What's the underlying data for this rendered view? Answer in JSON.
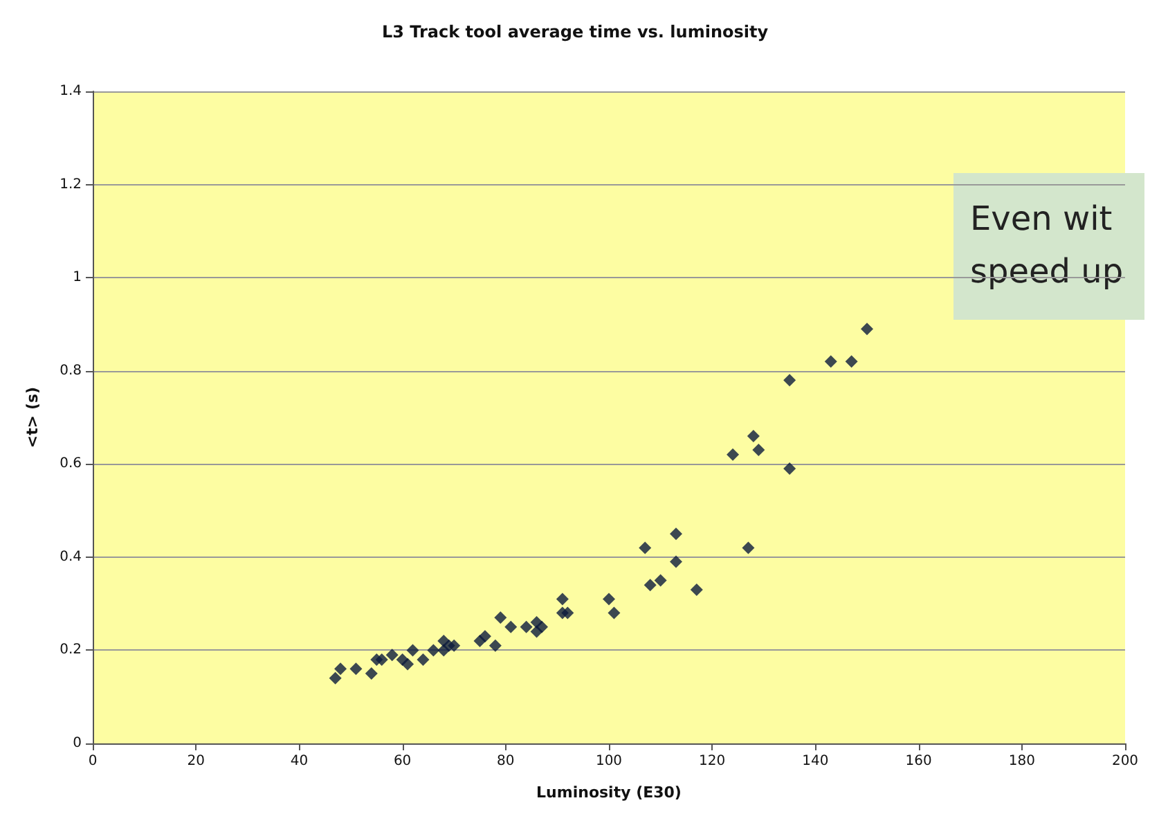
{
  "chart_data": {
    "type": "scatter",
    "title": "L3 Track tool average time vs. luminosity",
    "xlabel": "Luminosity (E30)",
    "ylabel": "<t> (s)",
    "annotations": [
      "Even wit\nspeed up"
    ],
    "x": [
      47,
      48,
      51,
      54,
      55,
      56,
      58,
      60,
      61,
      62,
      64,
      66,
      68,
      68,
      69,
      70,
      75,
      76,
      78,
      79,
      81,
      84,
      86,
      86,
      87,
      91,
      91,
      92,
      100,
      101,
      107,
      108,
      110,
      113,
      113,
      117,
      124,
      127,
      128,
      129,
      135,
      135,
      143,
      147,
      150
    ],
    "series": [
      {
        "color": "#0b1a3c",
        "values": [
          0.14,
          0.16,
          0.16,
          0.15,
          0.18,
          0.18,
          0.19,
          0.18,
          0.17,
          0.2,
          0.18,
          0.2,
          0.22,
          0.2,
          0.21,
          0.21,
          0.22,
          0.23,
          0.21,
          0.27,
          0.25,
          0.25,
          0.26,
          0.24,
          0.25,
          0.31,
          0.28,
          0.28,
          0.31,
          0.28,
          0.42,
          0.34,
          0.35,
          0.45,
          0.39,
          0.33,
          0.62,
          0.42,
          0.66,
          0.63,
          0.78,
          0.59,
          0.82,
          0.82,
          0.89
        ]
      }
    ],
    "xlim": [
      0,
      200
    ],
    "xticks": [
      0,
      20,
      40,
      60,
      80,
      100,
      120,
      140,
      160,
      180,
      200
    ],
    "ylim": [
      0,
      1.4
    ],
    "yticks": [
      0,
      0.2,
      0.4,
      0.6,
      0.8,
      1,
      1.2,
      1.4
    ],
    "grid": "y",
    "marker": "diamond"
  }
}
